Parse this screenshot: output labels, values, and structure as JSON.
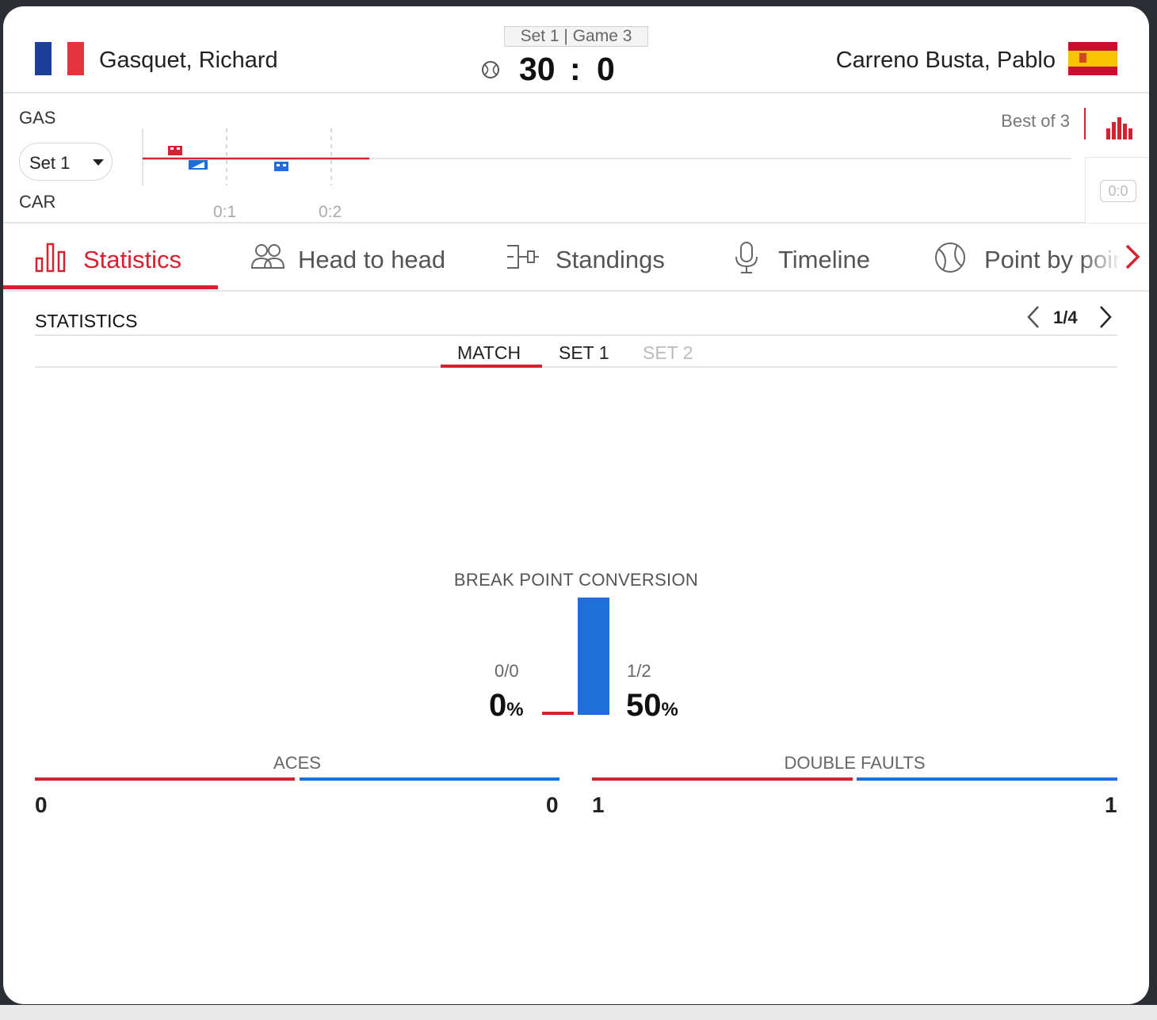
{
  "match": {
    "set_game": "Set 1 | Game 3",
    "score_home": "30",
    "score_separator": ":",
    "score_away": "0",
    "home": {
      "name": "Gasquet, Richard",
      "abbr": "GAS",
      "flag": "france-flag-icon",
      "flag_colors": [
        "#1d3f9a",
        "#ffffff",
        "#e5323f"
      ]
    },
    "away": {
      "name": "Carreno Busta, Pablo",
      "abbr": "CAR",
      "flag": "spain-flag-icon",
      "flag_colors": [
        "#c8102e",
        "#f6c400",
        "#c8102e"
      ]
    }
  },
  "tracker": {
    "set_selector": "Set 1",
    "best_of": "Best of 3",
    "game_labels": [
      "0:1",
      "0:2"
    ],
    "side_button": "0:0"
  },
  "tabs": [
    {
      "label": "Statistics",
      "icon": "bar-chart-icon",
      "active": true
    },
    {
      "label": "Head to head",
      "icon": "people-icon",
      "active": false
    },
    {
      "label": "Standings",
      "icon": "bracket-icon",
      "active": false
    },
    {
      "label": "Timeline",
      "icon": "microphone-icon",
      "active": false
    },
    {
      "label": "Point by poin",
      "icon": "tennis-ball-icon",
      "active": false
    }
  ],
  "statistics": {
    "title": "STATISTICS",
    "page": "1/4",
    "subtabs": [
      {
        "label": "MATCH",
        "active": true,
        "disabled": false
      },
      {
        "label": "SET 1",
        "active": false,
        "disabled": false
      },
      {
        "label": "SET 2",
        "active": false,
        "disabled": true
      }
    ],
    "break_point": {
      "title": "BREAK POINT CONVERSION",
      "home_fraction": "0/0",
      "home_pct": "0",
      "away_fraction": "1/2",
      "away_pct": "50",
      "pct_sign": "%"
    },
    "aces": {
      "title": "ACES",
      "home": "0",
      "away": "0"
    },
    "double_faults": {
      "title": "DOUBLE FAULTS",
      "home": "1",
      "away": "1"
    }
  },
  "colors": {
    "accent_red": "#d62230",
    "accent_blue": "#1f6fd9"
  }
}
